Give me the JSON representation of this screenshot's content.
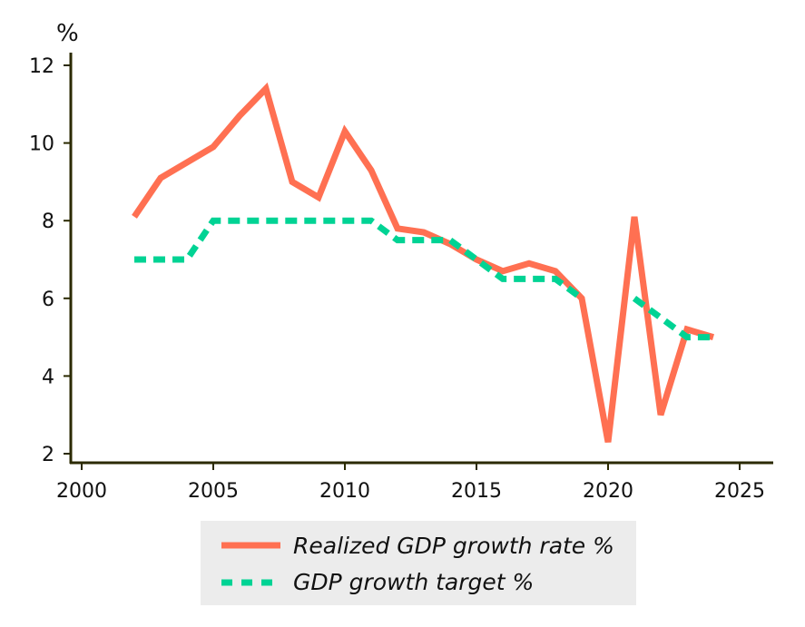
{
  "chart_data": {
    "type": "line",
    "ylabel": "%",
    "xlim": [
      1998.5,
      2026.3
    ],
    "ylim": [
      1.7,
      12.3
    ],
    "xticks": [
      2000,
      2005,
      2010,
      2015,
      2020,
      2025
    ],
    "yticks": [
      2,
      4,
      6,
      8,
      10,
      12
    ],
    "grid": false,
    "legend_position": "bottom",
    "series": [
      {
        "name": "Realized GDP growth rate %",
        "color": "#ff7052",
        "style": "solid",
        "x": [
          2002,
          2003,
          2004,
          2005,
          2006,
          2007,
          2008,
          2009,
          2010,
          2011,
          2012,
          2013,
          2014,
          2015,
          2016,
          2017,
          2018,
          2019,
          2020,
          2021,
          2022,
          2023,
          2024
        ],
        "y": [
          8.1,
          9.1,
          9.5,
          9.9,
          10.7,
          11.4,
          9.0,
          8.6,
          10.3,
          9.3,
          7.8,
          7.7,
          7.4,
          7.0,
          6.7,
          6.9,
          6.7,
          6.0,
          2.3,
          8.1,
          3.0,
          5.2,
          5.0
        ]
      },
      {
        "name": "GDP growth target %",
        "color": "#00d394",
        "style": "dashed",
        "x": [
          2002,
          2003,
          2004,
          2005,
          2006,
          2007,
          2008,
          2009,
          2010,
          2011,
          2012,
          2013,
          2014,
          2015,
          2016,
          2017,
          2018,
          2019,
          2020,
          2021,
          2022,
          2023,
          2024
        ],
        "y": [
          7.0,
          7.0,
          7.0,
          8.0,
          8.0,
          8.0,
          8.0,
          8.0,
          8.0,
          8.0,
          7.5,
          7.5,
          7.5,
          7.0,
          6.5,
          6.5,
          6.5,
          6.0,
          null,
          6.0,
          5.5,
          5.0,
          5.0
        ]
      }
    ]
  }
}
